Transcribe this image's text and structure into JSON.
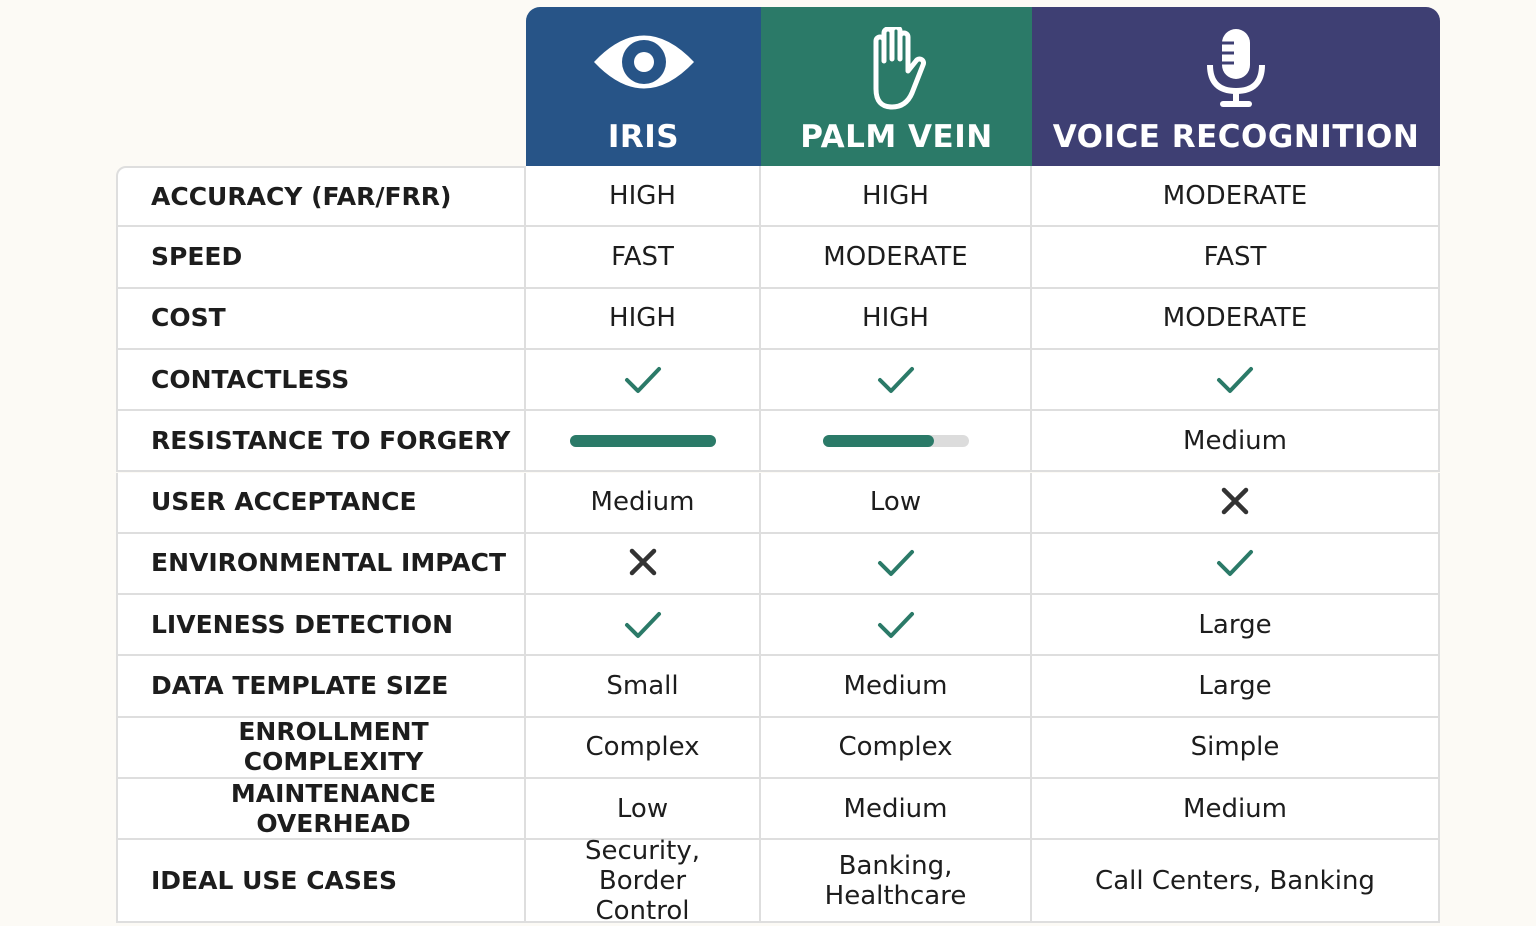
{
  "header": {
    "columns": [
      {
        "label": "IRIS",
        "color": "#275487"
      },
      {
        "label": "PALM VEIN",
        "color": "#2b7a68"
      },
      {
        "label": "VOICE RECOGNITION",
        "color": "#3e3f73"
      }
    ]
  },
  "table": {
    "rows": [
      {
        "label": "ACCURACY (FAR/FRR)",
        "cells": [
          {
            "text": "HIGH"
          },
          {
            "text": "HIGH"
          },
          {
            "text": "MODERATE"
          }
        ]
      },
      {
        "label": "SPEED",
        "cells": [
          {
            "text": "FAST"
          },
          {
            "text": "MODERATE"
          },
          {
            "text": "FAST"
          }
        ]
      },
      {
        "label": "COST",
        "cells": [
          {
            "text": "HIGH"
          },
          {
            "text": "HIGH"
          },
          {
            "text": "MODERATE"
          }
        ]
      },
      {
        "label": "CONTACTLESS",
        "cells": [
          {
            "icon": "check"
          },
          {
            "icon": "check"
          },
          {
            "icon": "check"
          }
        ]
      },
      {
        "label": "RESISTANCE TO FORGERY",
        "cells": [
          {
            "bar": 100
          },
          {
            "bar": 76
          },
          {
            "text": "Medium"
          }
        ]
      },
      {
        "label": "USER ACCEPTANCE",
        "cells": [
          {
            "text": "Medium"
          },
          {
            "text": "Low"
          },
          {
            "icon": "cross"
          }
        ]
      },
      {
        "label": "ENVIRONMENTAL IMPACT",
        "cells": [
          {
            "icon": "cross"
          },
          {
            "icon": "check"
          },
          {
            "icon": "check"
          }
        ]
      },
      {
        "label": "LIVENESS DETECTION",
        "cells": [
          {
            "icon": "check"
          },
          {
            "icon": "check"
          },
          {
            "text": "Large"
          }
        ]
      },
      {
        "label": "DATA TEMPLATE SIZE",
        "cells": [
          {
            "text": "Small"
          },
          {
            "text": "Medium"
          },
          {
            "text": "Large"
          }
        ]
      },
      {
        "label": "ENROLLMENT COMPLEXITY",
        "cells": [
          {
            "text": "Complex"
          },
          {
            "text": "Complex"
          },
          {
            "text": "Simple"
          }
        ]
      },
      {
        "label": "MAINTENANCE OVERHEAD",
        "cells": [
          {
            "text": "Low"
          },
          {
            "text": "Medium"
          },
          {
            "text": "Medium"
          }
        ]
      },
      {
        "label": "IDEAL USE CASES",
        "cells": [
          {
            "text": "Security, Border Control"
          },
          {
            "text": "Banking, Healthcare"
          },
          {
            "text": "Call Centers, Banking"
          }
        ]
      }
    ]
  },
  "check_color": "#2b7a68",
  "cross_color": "#333333",
  "bar_color": "#2b7a68"
}
